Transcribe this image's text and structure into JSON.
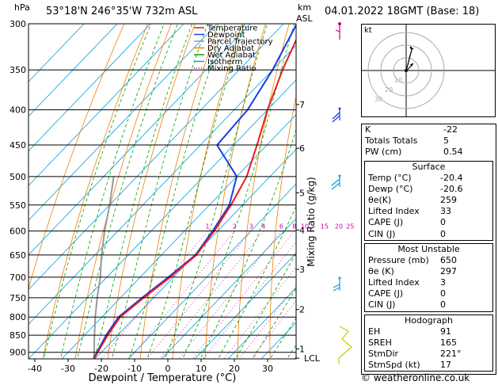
{
  "header": {
    "pressure_unit": "hPa",
    "location": "53°18'N 246°35'W 732m ASL",
    "height_unit_line1": "km",
    "height_unit_line2": "ASL",
    "datetime": "04.01.2022 18GMT (Base: 18)"
  },
  "chart_data": {
    "type": "line",
    "xlabel": "Dewpoint / Temperature (°C)",
    "ylabel": "Mixing Ratio (g/kg)",
    "x_ticks": [
      "-40",
      "-30",
      "-20",
      "-10",
      "0",
      "10",
      "20",
      "30"
    ],
    "x_tick_values": [
      -40,
      -30,
      -20,
      -10,
      0,
      10,
      20,
      30
    ],
    "pressure_ticks": [
      300,
      350,
      400,
      450,
      500,
      550,
      600,
      650,
      700,
      750,
      800,
      850,
      900
    ],
    "pressure_tick_labels": [
      "300",
      "350",
      "400",
      "450",
      "500",
      "550",
      "600",
      "650",
      "700",
      "750",
      "800",
      "850",
      "900"
    ],
    "km_ticks": [
      {
        "label": "7",
        "p": 393
      },
      {
        "label": "6",
        "p": 455
      },
      {
        "label": "5",
        "p": 528
      },
      {
        "label": "4",
        "p": 598
      },
      {
        "label": "3",
        "p": 682
      },
      {
        "label": "2",
        "p": 780
      },
      {
        "label": "1",
        "p": 890
      },
      {
        "label": "LCL",
        "p": 918
      }
    ],
    "mixing_ratio_labels": [
      "1",
      "2",
      "3",
      "4",
      "6",
      "8",
      "10",
      "15",
      "20",
      "25"
    ],
    "mixing_ratio_values": [
      1,
      2,
      3,
      4,
      6,
      8,
      10,
      15,
      20,
      25
    ],
    "legend": [
      {
        "name": "Temperature",
        "color": "#e81c1c",
        "dash": "solid"
      },
      {
        "name": "Dewpoint",
        "color": "#1c3ce8",
        "dash": "solid"
      },
      {
        "name": "Parcel Trajectory",
        "color": "#999999",
        "dash": "solid"
      },
      {
        "name": "Dry Adiabat",
        "color": "#f08000",
        "dash": "solid"
      },
      {
        "name": "Wet Adiabat",
        "color": "#00a000",
        "dash": "solid"
      },
      {
        "name": "Isotherm",
        "color": "#00a0e0",
        "dash": "solid"
      },
      {
        "name": "Mixing Ratio",
        "color": "#d000a0",
        "dash": "dotted"
      }
    ],
    "xlim": [
      -42,
      38
    ],
    "plim": [
      300,
      920
    ],
    "skew_deg_per_px": 0.48,
    "series": [
      {
        "name": "Temperature",
        "points": [
          {
            "p": 300,
            "t": -54
          },
          {
            "p": 350,
            "t": -47
          },
          {
            "p": 400,
            "t": -40
          },
          {
            "p": 450,
            "t": -33
          },
          {
            "p": 500,
            "t": -27
          },
          {
            "p": 550,
            "t": -23.5
          },
          {
            "p": 600,
            "t": -21
          },
          {
            "p": 650,
            "t": -19.5
          },
          {
            "p": 700,
            "t": -21
          },
          {
            "p": 750,
            "t": -23
          },
          {
            "p": 800,
            "t": -24.5
          },
          {
            "p": 850,
            "t": -23
          },
          {
            "p": 918,
            "t": -20.4
          }
        ]
      },
      {
        "name": "Dewpoint",
        "points": [
          {
            "p": 300,
            "t": -56
          },
          {
            "p": 350,
            "t": -50
          },
          {
            "p": 400,
            "t": -46
          },
          {
            "p": 450,
            "t": -45
          },
          {
            "p": 500,
            "t": -30
          },
          {
            "p": 550,
            "t": -24
          },
          {
            "p": 600,
            "t": -21.5
          },
          {
            "p": 650,
            "t": -19.8
          },
          {
            "p": 700,
            "t": -21.5
          },
          {
            "p": 750,
            "t": -23.5
          },
          {
            "p": 800,
            "t": -25
          },
          {
            "p": 850,
            "t": -23.5
          },
          {
            "p": 918,
            "t": -20.6
          }
        ]
      },
      {
        "name": "Parcel Trajectory",
        "points": [
          {
            "p": 918,
            "t": -20.5
          },
          {
            "p": 850,
            "t": -27
          },
          {
            "p": 800,
            "t": -32
          },
          {
            "p": 750,
            "t": -37
          },
          {
            "p": 700,
            "t": -42
          },
          {
            "p": 650,
            "t": -48
          },
          {
            "p": 600,
            "t": -54
          },
          {
            "p": 550,
            "t": -60
          },
          {
            "p": 500,
            "t": -67
          }
        ]
      }
    ]
  },
  "hodograph": {
    "label": "kt",
    "ring_labels": [
      "10",
      "20",
      "30"
    ]
  },
  "indices": {
    "top": [
      {
        "label": "K",
        "value": "-22"
      },
      {
        "label": "Totals Totals",
        "value": "5"
      },
      {
        "label": "PW (cm)",
        "value": "0.54"
      }
    ],
    "surface": {
      "title": "Surface",
      "rows": [
        {
          "label": "Temp (°C)",
          "value": "-20.4"
        },
        {
          "label": "Dewp (°C)",
          "value": "-20.6"
        },
        {
          "label": "θe(K)",
          "value": "259"
        },
        {
          "label": "Lifted Index",
          "value": "33"
        },
        {
          "label": "CAPE (J)",
          "value": "0"
        },
        {
          "label": "CIN (J)",
          "value": "0"
        }
      ]
    },
    "most_unstable": {
      "title": "Most Unstable",
      "rows": [
        {
          "label": "Pressure (mb)",
          "value": "650"
        },
        {
          "label": "θe (K)",
          "value": "297"
        },
        {
          "label": "Lifted Index",
          "value": "3"
        },
        {
          "label": "CAPE (J)",
          "value": "0"
        },
        {
          "label": "CIN (J)",
          "value": "0"
        }
      ]
    },
    "hodograph_table": {
      "title": "Hodograph",
      "rows": [
        {
          "label": "EH",
          "value": "91"
        },
        {
          "label": "SREH",
          "value": "165"
        },
        {
          "label": "StmDir",
          "value": "221°"
        },
        {
          "label": "StmSpd (kt)",
          "value": "17"
        }
      ]
    }
  },
  "footer": "© weatheronline.co.uk"
}
